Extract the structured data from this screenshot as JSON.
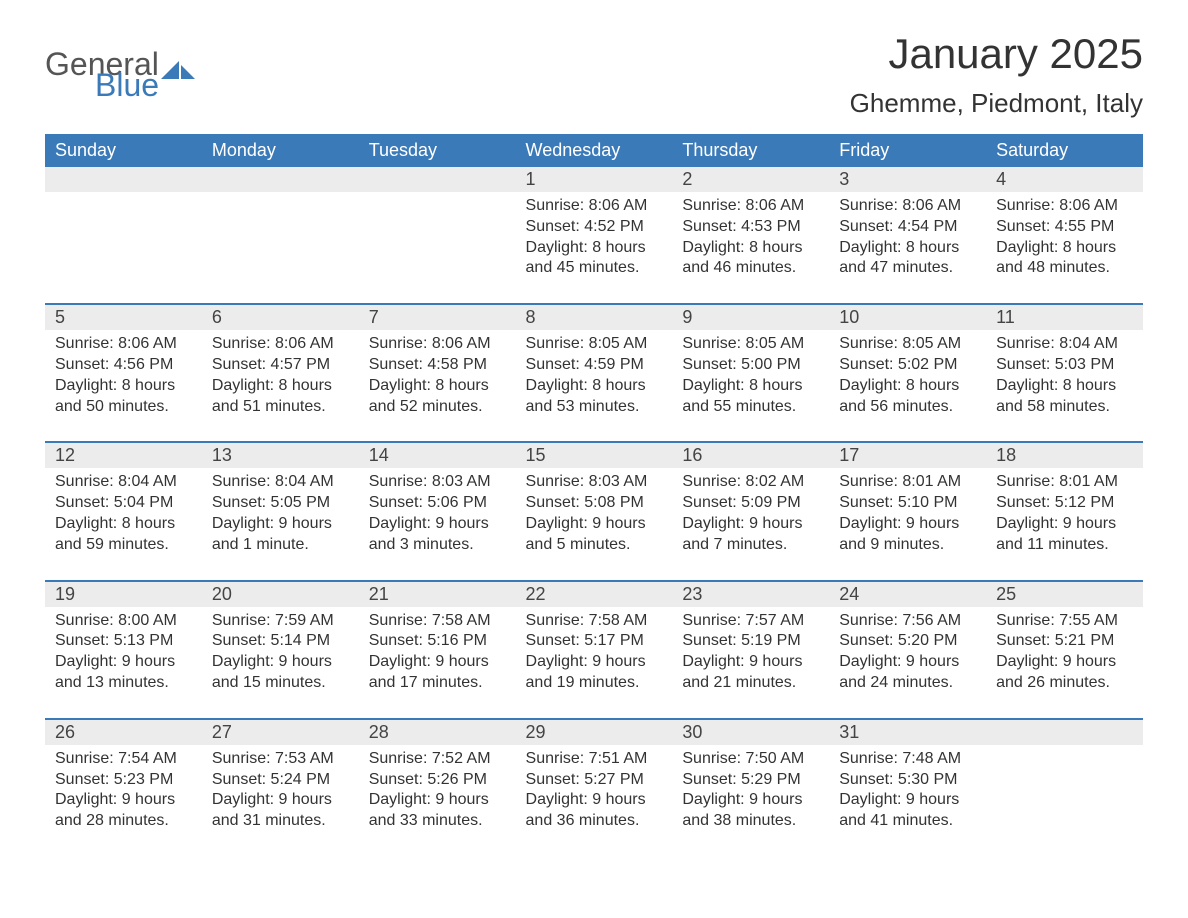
{
  "logo": {
    "text1": "General",
    "text2": "Blue",
    "icon_color": "#3a7ab8",
    "text1_color": "#555555",
    "text2_color": "#3a7ab8"
  },
  "title": "January 2025",
  "location": "Ghemme, Piedmont, Italy",
  "colors": {
    "header_bg": "#3a7ab8",
    "header_text": "#ffffff",
    "day_num_bg": "#ececec",
    "day_border": "#3a7ab8",
    "text": "#333333",
    "background": "#ffffff"
  },
  "fonts": {
    "title_size": 42,
    "location_size": 26,
    "header_size": 18,
    "daynum_size": 18,
    "detail_size": 16
  },
  "day_headers": [
    "Sunday",
    "Monday",
    "Tuesday",
    "Wednesday",
    "Thursday",
    "Friday",
    "Saturday"
  ],
  "weeks": [
    {
      "nums": [
        "",
        "",
        "",
        "1",
        "2",
        "3",
        "4"
      ],
      "details": [
        "",
        "",
        "",
        "Sunrise: 8:06 AM\nSunset: 4:52 PM\nDaylight: 8 hours and 45 minutes.",
        "Sunrise: 8:06 AM\nSunset: 4:53 PM\nDaylight: 8 hours and 46 minutes.",
        "Sunrise: 8:06 AM\nSunset: 4:54 PM\nDaylight: 8 hours and 47 minutes.",
        "Sunrise: 8:06 AM\nSunset: 4:55 PM\nDaylight: 8 hours and 48 minutes."
      ]
    },
    {
      "nums": [
        "5",
        "6",
        "7",
        "8",
        "9",
        "10",
        "11"
      ],
      "details": [
        "Sunrise: 8:06 AM\nSunset: 4:56 PM\nDaylight: 8 hours and 50 minutes.",
        "Sunrise: 8:06 AM\nSunset: 4:57 PM\nDaylight: 8 hours and 51 minutes.",
        "Sunrise: 8:06 AM\nSunset: 4:58 PM\nDaylight: 8 hours and 52 minutes.",
        "Sunrise: 8:05 AM\nSunset: 4:59 PM\nDaylight: 8 hours and 53 minutes.",
        "Sunrise: 8:05 AM\nSunset: 5:00 PM\nDaylight: 8 hours and 55 minutes.",
        "Sunrise: 8:05 AM\nSunset: 5:02 PM\nDaylight: 8 hours and 56 minutes.",
        "Sunrise: 8:04 AM\nSunset: 5:03 PM\nDaylight: 8 hours and 58 minutes."
      ]
    },
    {
      "nums": [
        "12",
        "13",
        "14",
        "15",
        "16",
        "17",
        "18"
      ],
      "details": [
        "Sunrise: 8:04 AM\nSunset: 5:04 PM\nDaylight: 8 hours and 59 minutes.",
        "Sunrise: 8:04 AM\nSunset: 5:05 PM\nDaylight: 9 hours and 1 minute.",
        "Sunrise: 8:03 AM\nSunset: 5:06 PM\nDaylight: 9 hours and 3 minutes.",
        "Sunrise: 8:03 AM\nSunset: 5:08 PM\nDaylight: 9 hours and 5 minutes.",
        "Sunrise: 8:02 AM\nSunset: 5:09 PM\nDaylight: 9 hours and 7 minutes.",
        "Sunrise: 8:01 AM\nSunset: 5:10 PM\nDaylight: 9 hours and 9 minutes.",
        "Sunrise: 8:01 AM\nSunset: 5:12 PM\nDaylight: 9 hours and 11 minutes."
      ]
    },
    {
      "nums": [
        "19",
        "20",
        "21",
        "22",
        "23",
        "24",
        "25"
      ],
      "details": [
        "Sunrise: 8:00 AM\nSunset: 5:13 PM\nDaylight: 9 hours and 13 minutes.",
        "Sunrise: 7:59 AM\nSunset: 5:14 PM\nDaylight: 9 hours and 15 minutes.",
        "Sunrise: 7:58 AM\nSunset: 5:16 PM\nDaylight: 9 hours and 17 minutes.",
        "Sunrise: 7:58 AM\nSunset: 5:17 PM\nDaylight: 9 hours and 19 minutes.",
        "Sunrise: 7:57 AM\nSunset: 5:19 PM\nDaylight: 9 hours and 21 minutes.",
        "Sunrise: 7:56 AM\nSunset: 5:20 PM\nDaylight: 9 hours and 24 minutes.",
        "Sunrise: 7:55 AM\nSunset: 5:21 PM\nDaylight: 9 hours and 26 minutes."
      ]
    },
    {
      "nums": [
        "26",
        "27",
        "28",
        "29",
        "30",
        "31",
        ""
      ],
      "details": [
        "Sunrise: 7:54 AM\nSunset: 5:23 PM\nDaylight: 9 hours and 28 minutes.",
        "Sunrise: 7:53 AM\nSunset: 5:24 PM\nDaylight: 9 hours and 31 minutes.",
        "Sunrise: 7:52 AM\nSunset: 5:26 PM\nDaylight: 9 hours and 33 minutes.",
        "Sunrise: 7:51 AM\nSunset: 5:27 PM\nDaylight: 9 hours and 36 minutes.",
        "Sunrise: 7:50 AM\nSunset: 5:29 PM\nDaylight: 9 hours and 38 minutes.",
        "Sunrise: 7:48 AM\nSunset: 5:30 PM\nDaylight: 9 hours and 41 minutes.",
        ""
      ]
    }
  ]
}
